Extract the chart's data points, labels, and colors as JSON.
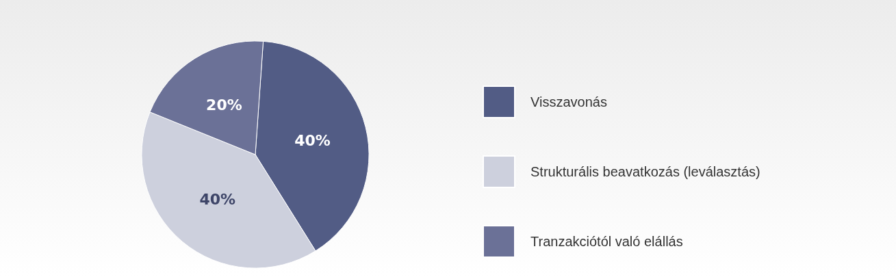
{
  "chart_data": {
    "type": "pie",
    "categories": [
      "Visszavonás",
      "Strukturális beavatkozás (leválasztás)",
      "Tranzakciótól való elállás"
    ],
    "values": [
      40,
      40,
      20
    ],
    "colors": [
      "#525c85",
      "#cdd0dd",
      "#6b7197"
    ],
    "value_labels": [
      "40%",
      "40%",
      "20%"
    ],
    "legend": "right"
  }
}
